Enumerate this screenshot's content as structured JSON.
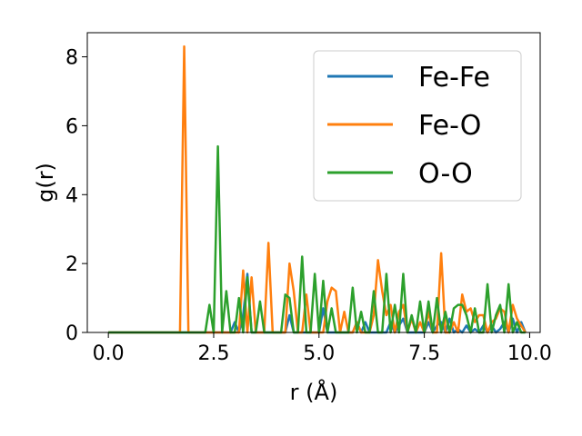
{
  "chart_data": {
    "type": "line",
    "title": "",
    "xlabel": "r (Å)",
    "ylabel": "g(r)",
    "xlim": [
      -0.5,
      10.25
    ],
    "ylim": [
      0,
      8.7
    ],
    "xticks": [
      "0.0",
      "2.5",
      "5.0",
      "7.5",
      "10.0"
    ],
    "xtick_values": [
      0,
      2.5,
      5,
      7.5,
      10
    ],
    "yticks": [
      "0",
      "2",
      "4",
      "6",
      "8"
    ],
    "ytick_values": [
      0,
      2,
      4,
      6,
      8
    ],
    "grid": false,
    "legend_position": "top-right",
    "series": [
      {
        "name": "Fe-Fe",
        "color": "#1f77b4",
        "x": [
          0.0,
          2.9,
          3.0,
          3.1,
          3.2,
          3.3,
          3.4,
          3.5,
          4.2,
          4.3,
          4.4,
          4.5,
          5.0,
          5.1,
          5.2,
          5.3,
          5.8,
          5.9,
          6.0,
          6.1,
          6.2,
          6.3,
          6.6,
          6.7,
          6.8,
          6.9,
          7.0,
          7.1,
          7.2,
          7.5,
          7.6,
          7.7,
          7.8,
          7.9,
          8.0,
          8.1,
          8.2,
          8.3,
          8.4,
          8.5,
          8.6,
          8.7,
          8.8,
          8.9,
          9.0,
          9.1,
          9.2,
          9.3,
          9.4,
          9.5,
          9.6,
          9.7,
          9.8,
          9.9
        ],
        "y": [
          0.0,
          0.0,
          0.3,
          0.0,
          0.5,
          1.7,
          0.0,
          0.0,
          0.0,
          0.5,
          0.0,
          0.0,
          0.0,
          0.7,
          0.0,
          0.0,
          0.0,
          0.3,
          0.0,
          0.3,
          0.0,
          0.0,
          0.0,
          0.3,
          0.0,
          0.2,
          0.4,
          0.0,
          0.0,
          0.0,
          0.3,
          0.0,
          0.2,
          0.3,
          0.0,
          0.4,
          0.0,
          0.1,
          0.0,
          0.2,
          0.0,
          0.1,
          0.0,
          0.2,
          0.0,
          0.2,
          0.0,
          0.1,
          0.3,
          0.0,
          0.4,
          0.0,
          0.3,
          0.0
        ]
      },
      {
        "name": "Fe-O",
        "color": "#ff7f0e",
        "x": [
          0.0,
          1.7,
          1.8,
          1.9,
          3.1,
          3.2,
          3.3,
          3.4,
          3.5,
          3.6,
          3.7,
          3.8,
          3.9,
          4.0,
          4.1,
          4.2,
          4.3,
          4.4,
          4.5,
          4.6,
          4.7,
          4.8,
          4.9,
          5.0,
          5.1,
          5.2,
          5.3,
          5.4,
          5.5,
          5.6,
          5.7,
          5.8,
          5.9,
          6.0,
          6.1,
          6.2,
          6.3,
          6.4,
          6.5,
          6.6,
          6.7,
          6.8,
          6.9,
          7.0,
          7.1,
          7.2,
          7.3,
          7.4,
          7.5,
          7.6,
          7.7,
          7.8,
          7.9,
          8.0,
          8.1,
          8.2,
          8.3,
          8.4,
          8.5,
          8.6,
          8.7,
          8.8,
          8.9,
          9.0,
          9.1,
          9.2,
          9.3,
          9.4,
          9.5,
          9.6,
          9.7,
          9.8,
          9.9
        ],
        "y": [
          0.0,
          0.0,
          8.3,
          0.0,
          0.0,
          1.8,
          0.0,
          1.6,
          0.0,
          0.0,
          0.0,
          2.6,
          0.0,
          0.0,
          0.0,
          0.0,
          2.0,
          1.2,
          0.0,
          0.0,
          1.1,
          0.0,
          0.0,
          0.0,
          0.0,
          0.9,
          1.3,
          1.2,
          0.0,
          0.6,
          0.0,
          0.0,
          0.3,
          0.0,
          0.0,
          0.0,
          0.5,
          2.1,
          1.2,
          0.5,
          0.8,
          0.0,
          0.6,
          0.8,
          0.0,
          0.4,
          0.0,
          0.3,
          0.0,
          0.6,
          0.0,
          0.0,
          2.3,
          0.0,
          0.0,
          0.3,
          0.0,
          1.1,
          0.6,
          0.7,
          0.3,
          0.5,
          0.5,
          0.0,
          0.3,
          0.4,
          0.7,
          0.6,
          0.0,
          0.8,
          0.4,
          0.2,
          0.0
        ]
      },
      {
        "name": "O-O",
        "color": "#2ca02c",
        "x": [
          0.0,
          2.3,
          2.4,
          2.5,
          2.6,
          2.7,
          2.8,
          2.9,
          3.0,
          3.1,
          3.2,
          3.3,
          3.4,
          3.5,
          3.6,
          3.7,
          3.8,
          3.9,
          4.0,
          4.1,
          4.2,
          4.3,
          4.4,
          4.5,
          4.6,
          4.7,
          4.8,
          4.9,
          5.0,
          5.1,
          5.2,
          5.3,
          5.4,
          5.5,
          5.6,
          5.7,
          5.8,
          5.9,
          6.0,
          6.1,
          6.2,
          6.3,
          6.4,
          6.5,
          6.6,
          6.7,
          6.8,
          6.9,
          7.0,
          7.1,
          7.2,
          7.3,
          7.4,
          7.5,
          7.6,
          7.7,
          7.8,
          7.9,
          8.0,
          8.1,
          8.2,
          8.3,
          8.4,
          8.5,
          8.6,
          8.7,
          8.8,
          8.9,
          9.0,
          9.1,
          9.2,
          9.3,
          9.4,
          9.5,
          9.6,
          9.7,
          9.8,
          9.9
        ],
        "y": [
          0.0,
          0.0,
          0.8,
          0.0,
          5.4,
          0.0,
          1.2,
          0.0,
          0.0,
          1.0,
          0.0,
          1.6,
          0.0,
          0.0,
          0.9,
          0.0,
          0.0,
          0.0,
          0.0,
          0.0,
          1.1,
          1.0,
          0.0,
          0.0,
          2.2,
          0.0,
          0.0,
          1.7,
          0.0,
          1.5,
          0.0,
          0.7,
          0.0,
          0.0,
          0.0,
          0.0,
          1.3,
          0.0,
          0.6,
          0.0,
          0.0,
          1.2,
          0.0,
          0.0,
          1.7,
          0.0,
          0.8,
          0.0,
          1.7,
          0.0,
          0.5,
          0.0,
          0.9,
          0.0,
          0.9,
          0.0,
          1.0,
          0.0,
          0.6,
          0.0,
          0.7,
          0.8,
          0.8,
          0.5,
          0.0,
          0.7,
          0.0,
          0.0,
          1.4,
          0.0,
          0.5,
          0.8,
          0.0,
          1.4,
          0.0,
          0.3,
          0.0,
          0.0
        ]
      }
    ]
  }
}
